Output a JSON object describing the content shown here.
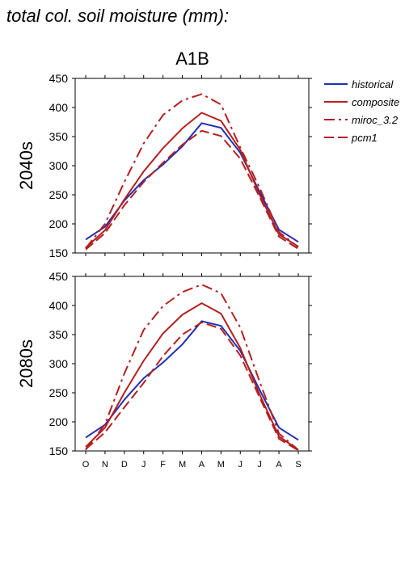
{
  "figure": {
    "title": "total col. soil moisture (mm):",
    "scenario": "A1B"
  },
  "colors": {
    "historical": "#1f2fb5",
    "model": "#b51f1f",
    "axis": "#000000"
  },
  "legend": {
    "placement": "top-right",
    "entries": [
      {
        "name": "historical",
        "style": "solid",
        "color": "#1f2fb5"
      },
      {
        "name": "composite",
        "style": "solid",
        "color": "#b51f1f"
      },
      {
        "name": "miroc_3.2",
        "style": "dashdot",
        "color": "#b51f1f"
      },
      {
        "name": "pcm1",
        "style": "dashed",
        "color": "#b51f1f"
      }
    ]
  },
  "chart_data": [
    {
      "type": "line",
      "ylabel": "2040s",
      "ylim": [
        150,
        450
      ],
      "yticks": [
        150,
        200,
        250,
        300,
        350,
        400,
        450
      ],
      "categories": [
        "O",
        "N",
        "D",
        "J",
        "F",
        "M",
        "A",
        "M",
        "J",
        "J",
        "A",
        "S"
      ],
      "show_xticklabels": false,
      "series": [
        {
          "name": "historical",
          "style": "solid",
          "values": [
            173,
            195,
            240,
            275,
            302,
            333,
            373,
            365,
            322,
            255,
            190,
            169
          ]
        },
        {
          "name": "composite",
          "style": "solid",
          "values": [
            159,
            189,
            242,
            290,
            330,
            364,
            391,
            377,
            327,
            250,
            182,
            161
          ]
        },
        {
          "name": "miroc_3.2",
          "style": "dashdot",
          "values": [
            158,
            200,
            272,
            338,
            387,
            412,
            423,
            405,
            331,
            262,
            186,
            160
          ]
        },
        {
          "name": "pcm1",
          "style": "dashed",
          "values": [
            156,
            184,
            232,
            272,
            305,
            336,
            360,
            351,
            312,
            246,
            178,
            157
          ]
        }
      ]
    },
    {
      "type": "line",
      "ylabel": "2080s",
      "ylim": [
        150,
        450
      ],
      "yticks": [
        150,
        200,
        250,
        300,
        350,
        400,
        450
      ],
      "categories": [
        "O",
        "N",
        "D",
        "J",
        "F",
        "M",
        "A",
        "M",
        "J",
        "J",
        "A",
        "S"
      ],
      "show_xticklabels": true,
      "series": [
        {
          "name": "historical",
          "style": "solid",
          "values": [
            173,
            195,
            238,
            275,
            302,
            333,
            373,
            365,
            322,
            255,
            190,
            169
          ]
        },
        {
          "name": "composite",
          "style": "solid",
          "values": [
            157,
            190,
            250,
            305,
            352,
            384,
            404,
            386,
            327,
            247,
            175,
            152
          ]
        },
        {
          "name": "miroc_3.2",
          "style": "dashdot",
          "values": [
            152,
            196,
            283,
            358,
            399,
            423,
            436,
            421,
            362,
            269,
            180,
            152
          ]
        },
        {
          "name": "pcm1",
          "style": "dashed",
          "values": [
            153,
            182,
            225,
            267,
            313,
            350,
            371,
            360,
            314,
            242,
            171,
            151
          ]
        }
      ]
    }
  ]
}
